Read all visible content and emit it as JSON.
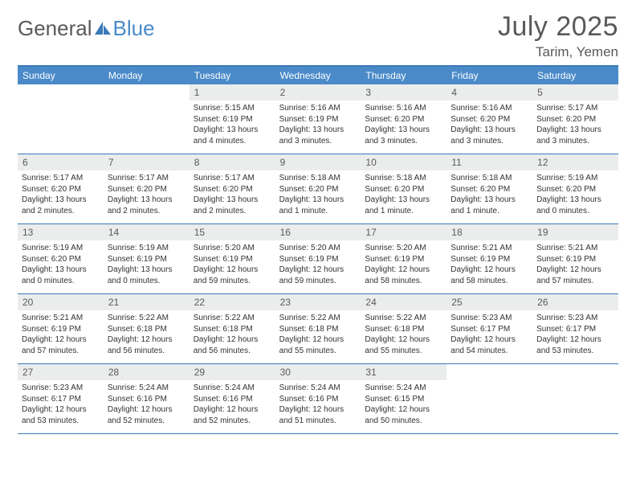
{
  "brand": {
    "part1": "General",
    "part2": "Blue"
  },
  "title": "July 2025",
  "location": "Tarim, Yemen",
  "colors": {
    "header_bg": "#4a8ac9",
    "border": "#3b7ab8",
    "daynum_bg": "#ebecec",
    "text": "#333333",
    "title_color": "#58595b"
  },
  "day_headers": [
    "Sunday",
    "Monday",
    "Tuesday",
    "Wednesday",
    "Thursday",
    "Friday",
    "Saturday"
  ],
  "weeks": [
    [
      null,
      null,
      {
        "n": "1",
        "sr": "5:15 AM",
        "ss": "6:19 PM",
        "dl": "13 hours and 4 minutes."
      },
      {
        "n": "2",
        "sr": "5:16 AM",
        "ss": "6:19 PM",
        "dl": "13 hours and 3 minutes."
      },
      {
        "n": "3",
        "sr": "5:16 AM",
        "ss": "6:20 PM",
        "dl": "13 hours and 3 minutes."
      },
      {
        "n": "4",
        "sr": "5:16 AM",
        "ss": "6:20 PM",
        "dl": "13 hours and 3 minutes."
      },
      {
        "n": "5",
        "sr": "5:17 AM",
        "ss": "6:20 PM",
        "dl": "13 hours and 3 minutes."
      }
    ],
    [
      {
        "n": "6",
        "sr": "5:17 AM",
        "ss": "6:20 PM",
        "dl": "13 hours and 2 minutes."
      },
      {
        "n": "7",
        "sr": "5:17 AM",
        "ss": "6:20 PM",
        "dl": "13 hours and 2 minutes."
      },
      {
        "n": "8",
        "sr": "5:17 AM",
        "ss": "6:20 PM",
        "dl": "13 hours and 2 minutes."
      },
      {
        "n": "9",
        "sr": "5:18 AM",
        "ss": "6:20 PM",
        "dl": "13 hours and 1 minute."
      },
      {
        "n": "10",
        "sr": "5:18 AM",
        "ss": "6:20 PM",
        "dl": "13 hours and 1 minute."
      },
      {
        "n": "11",
        "sr": "5:18 AM",
        "ss": "6:20 PM",
        "dl": "13 hours and 1 minute."
      },
      {
        "n": "12",
        "sr": "5:19 AM",
        "ss": "6:20 PM",
        "dl": "13 hours and 0 minutes."
      }
    ],
    [
      {
        "n": "13",
        "sr": "5:19 AM",
        "ss": "6:20 PM",
        "dl": "13 hours and 0 minutes."
      },
      {
        "n": "14",
        "sr": "5:19 AM",
        "ss": "6:19 PM",
        "dl": "13 hours and 0 minutes."
      },
      {
        "n": "15",
        "sr": "5:20 AM",
        "ss": "6:19 PM",
        "dl": "12 hours and 59 minutes."
      },
      {
        "n": "16",
        "sr": "5:20 AM",
        "ss": "6:19 PM",
        "dl": "12 hours and 59 minutes."
      },
      {
        "n": "17",
        "sr": "5:20 AM",
        "ss": "6:19 PM",
        "dl": "12 hours and 58 minutes."
      },
      {
        "n": "18",
        "sr": "5:21 AM",
        "ss": "6:19 PM",
        "dl": "12 hours and 58 minutes."
      },
      {
        "n": "19",
        "sr": "5:21 AM",
        "ss": "6:19 PM",
        "dl": "12 hours and 57 minutes."
      }
    ],
    [
      {
        "n": "20",
        "sr": "5:21 AM",
        "ss": "6:19 PM",
        "dl": "12 hours and 57 minutes."
      },
      {
        "n": "21",
        "sr": "5:22 AM",
        "ss": "6:18 PM",
        "dl": "12 hours and 56 minutes."
      },
      {
        "n": "22",
        "sr": "5:22 AM",
        "ss": "6:18 PM",
        "dl": "12 hours and 56 minutes."
      },
      {
        "n": "23",
        "sr": "5:22 AM",
        "ss": "6:18 PM",
        "dl": "12 hours and 55 minutes."
      },
      {
        "n": "24",
        "sr": "5:22 AM",
        "ss": "6:18 PM",
        "dl": "12 hours and 55 minutes."
      },
      {
        "n": "25",
        "sr": "5:23 AM",
        "ss": "6:17 PM",
        "dl": "12 hours and 54 minutes."
      },
      {
        "n": "26",
        "sr": "5:23 AM",
        "ss": "6:17 PM",
        "dl": "12 hours and 53 minutes."
      }
    ],
    [
      {
        "n": "27",
        "sr": "5:23 AM",
        "ss": "6:17 PM",
        "dl": "12 hours and 53 minutes."
      },
      {
        "n": "28",
        "sr": "5:24 AM",
        "ss": "6:16 PM",
        "dl": "12 hours and 52 minutes."
      },
      {
        "n": "29",
        "sr": "5:24 AM",
        "ss": "6:16 PM",
        "dl": "12 hours and 52 minutes."
      },
      {
        "n": "30",
        "sr": "5:24 AM",
        "ss": "6:16 PM",
        "dl": "12 hours and 51 minutes."
      },
      {
        "n": "31",
        "sr": "5:24 AM",
        "ss": "6:15 PM",
        "dl": "12 hours and 50 minutes."
      },
      null,
      null
    ]
  ],
  "labels": {
    "sunrise": "Sunrise: ",
    "sunset": "Sunset: ",
    "daylight": "Daylight: "
  }
}
